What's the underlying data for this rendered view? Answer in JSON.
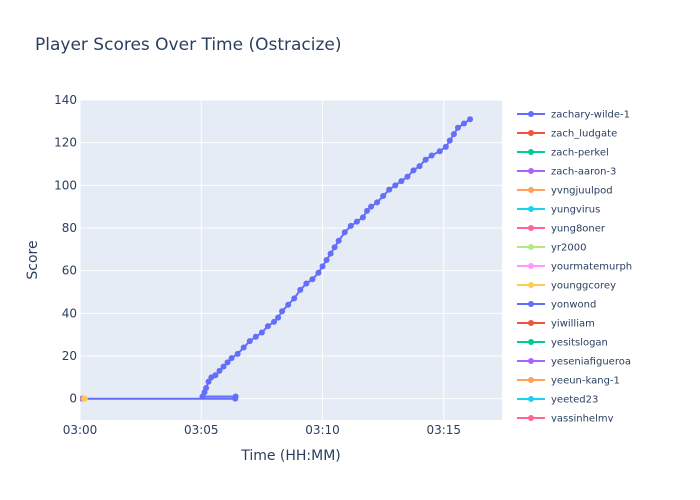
{
  "chart_data": {
    "type": "line",
    "title": "Player Scores Over Time (Ostracize)",
    "xlabel": "Time (HH:MM)",
    "ylabel": "Score",
    "x_tick_labels": [
      "03:00",
      "03:05",
      "03:10",
      "03:15"
    ],
    "xlim": [
      "03:00:00",
      "03:17:24"
    ],
    "ylim": [
      -10,
      140
    ],
    "y_ticks": [
      0,
      20,
      40,
      60,
      80,
      100,
      120,
      140
    ],
    "grid": true,
    "legend_position": "right",
    "series": [
      {
        "name": "zachary-wilde-1",
        "color": "#636efa",
        "points": [
          [
            "03:00:05",
            0
          ],
          [
            "03:06:24",
            0
          ],
          [
            "03:06:25",
            1
          ],
          [
            "03:05:03",
            1
          ],
          [
            "03:05:08",
            3
          ],
          [
            "03:05:12",
            5
          ],
          [
            "03:05:18",
            8
          ],
          [
            "03:05:25",
            10
          ],
          [
            "03:05:35",
            11
          ],
          [
            "03:05:45",
            13
          ],
          [
            "03:05:55",
            15
          ],
          [
            "03:06:05",
            17
          ],
          [
            "03:06:15",
            19
          ],
          [
            "03:06:30",
            21
          ],
          [
            "03:06:45",
            24
          ],
          [
            "03:07:00",
            27
          ],
          [
            "03:07:15",
            29
          ],
          [
            "03:07:30",
            31
          ],
          [
            "03:07:45",
            34
          ],
          [
            "03:08:00",
            36
          ],
          [
            "03:08:10",
            38
          ],
          [
            "03:08:20",
            41
          ],
          [
            "03:08:35",
            44
          ],
          [
            "03:08:50",
            47
          ],
          [
            "03:09:05",
            51
          ],
          [
            "03:09:20",
            54
          ],
          [
            "03:09:35",
            56
          ],
          [
            "03:09:50",
            59
          ],
          [
            "03:10:00",
            62
          ],
          [
            "03:10:10",
            65
          ],
          [
            "03:10:20",
            68
          ],
          [
            "03:10:30",
            71
          ],
          [
            "03:10:40",
            74
          ],
          [
            "03:10:55",
            78
          ],
          [
            "03:11:10",
            81
          ],
          [
            "03:11:25",
            83
          ],
          [
            "03:11:40",
            85
          ],
          [
            "03:11:50",
            88
          ],
          [
            "03:12:00",
            90
          ],
          [
            "03:12:15",
            92
          ],
          [
            "03:12:30",
            95
          ],
          [
            "03:12:45",
            98
          ],
          [
            "03:13:00",
            100
          ],
          [
            "03:13:15",
            102
          ],
          [
            "03:13:30",
            104
          ],
          [
            "03:13:45",
            107
          ],
          [
            "03:14:00",
            109
          ],
          [
            "03:14:15",
            112
          ],
          [
            "03:14:30",
            114
          ],
          [
            "03:14:50",
            116
          ],
          [
            "03:15:05",
            118
          ],
          [
            "03:15:15",
            121
          ],
          [
            "03:15:25",
            124
          ],
          [
            "03:15:35",
            127
          ],
          [
            "03:15:50",
            129
          ],
          [
            "03:16:05",
            131
          ]
        ]
      },
      {
        "name": "zach_ludgate",
        "color": "#EF553B",
        "points": []
      },
      {
        "name": "zach-perkel",
        "color": "#00cc96",
        "points": []
      },
      {
        "name": "zach-aaron-3",
        "color": "#ab63fa",
        "points": []
      },
      {
        "name": "yvngjuulpod",
        "color": "#FFA15A",
        "points": [
          [
            "03:00:08",
            0
          ]
        ]
      },
      {
        "name": "yungvirus",
        "color": "#19d3f3",
        "points": []
      },
      {
        "name": "yung8oner",
        "color": "#FF6692",
        "points": []
      },
      {
        "name": "yr2000",
        "color": "#B6E880",
        "points": []
      },
      {
        "name": "yourmatemurph",
        "color": "#FF97FF",
        "points": []
      },
      {
        "name": "younggcorey",
        "color": "#FECB52",
        "points": [
          [
            "03:00:12",
            0
          ]
        ]
      },
      {
        "name": "yonwond",
        "color": "#636efa",
        "points": []
      },
      {
        "name": "yiwilliam",
        "color": "#EF553B",
        "points": []
      },
      {
        "name": "yesitslogan",
        "color": "#00cc96",
        "points": []
      },
      {
        "name": "yeseniafigueroa",
        "color": "#ab63fa",
        "points": []
      },
      {
        "name": "yeeun-kang-1",
        "color": "#FFA15A",
        "points": []
      },
      {
        "name": "yeeted23",
        "color": "#19d3f3",
        "points": []
      },
      {
        "name": "yassinhelmy",
        "color": "#FF6692",
        "points": []
      }
    ]
  }
}
